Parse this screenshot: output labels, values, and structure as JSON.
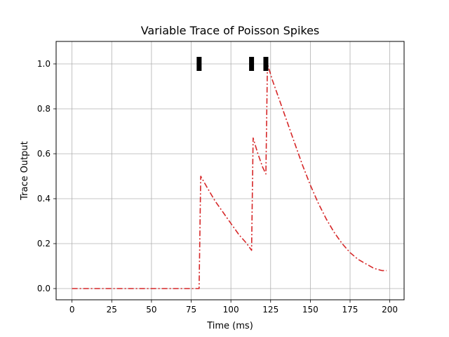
{
  "chart_data": {
    "type": "line",
    "title": "Variable Trace of Poisson Spikes",
    "xlabel": "Time (ms)",
    "ylabel": "Trace Output",
    "xlim": [
      -10,
      209
    ],
    "ylim": [
      -0.05,
      1.1
    ],
    "grid": true,
    "x_ticks": [
      0,
      25,
      50,
      75,
      100,
      125,
      150,
      175,
      200
    ],
    "y_ticks": [
      0.0,
      0.2,
      0.4,
      0.6,
      0.8,
      1.0
    ],
    "x_tick_labels": [
      "0",
      "25",
      "50",
      "75",
      "100",
      "125",
      "150",
      "175",
      "200"
    ],
    "y_tick_labels": [
      "0.0",
      "0.2",
      "0.4",
      "0.6",
      "0.8",
      "1.0"
    ],
    "series": [
      {
        "kind": "trace",
        "color": "#d62728",
        "line_style": "dash-dot",
        "x": [
          0,
          80,
          81,
          85,
          90,
          95,
          100,
          105,
          110,
          113,
          114,
          117,
          120,
          122,
          123,
          126,
          130,
          135,
          140,
          145,
          150,
          155,
          160,
          165,
          170,
          175,
          180,
          185,
          190,
          195,
          198
        ],
        "values": [
          0.0,
          0.0,
          0.5,
          0.45,
          0.39,
          0.34,
          0.29,
          0.24,
          0.2,
          0.17,
          0.67,
          0.6,
          0.54,
          0.51,
          1.0,
          0.93,
          0.85,
          0.75,
          0.65,
          0.55,
          0.46,
          0.38,
          0.31,
          0.25,
          0.2,
          0.16,
          0.13,
          0.11,
          0.09,
          0.08,
          0.08
        ]
      },
      {
        "kind": "spikes",
        "color": "#000000",
        "x": [
          80,
          113,
          122
        ],
        "values": [
          1.0,
          1.0,
          1.0
        ]
      }
    ]
  }
}
